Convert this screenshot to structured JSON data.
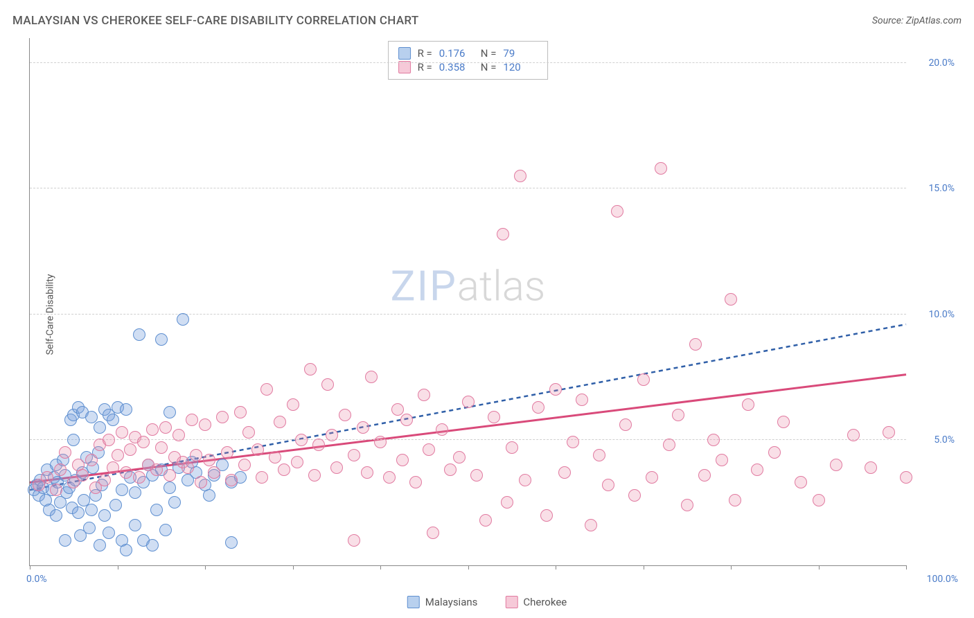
{
  "title": "MALAYSIAN VS CHEROKEE SELF-CARE DISABILITY CORRELATION CHART",
  "source": "Source: ZipAtlas.com",
  "watermark": {
    "zip": "ZIP",
    "atlas": "atlas"
  },
  "axes": {
    "y_label": "Self-Care Disability",
    "x_min_label": "0.0%",
    "x_max_label": "100.0%",
    "y_ticks": [
      {
        "value": 5.0,
        "label": "5.0%"
      },
      {
        "value": 10.0,
        "label": "10.0%"
      },
      {
        "value": 15.0,
        "label": "15.0%"
      },
      {
        "value": 20.0,
        "label": "20.0%"
      }
    ],
    "x_ticks": [
      0,
      10,
      20,
      30,
      40,
      50,
      60,
      70,
      80,
      90,
      100
    ],
    "xlim": [
      0,
      100
    ],
    "ylim": [
      0,
      21
    ]
  },
  "series": [
    {
      "id": "malaysians",
      "name": "Malaysians",
      "marker": {
        "fill": "rgba(120,160,220,0.35)",
        "stroke": "#5e8fd0",
        "radius": 9
      },
      "swatch": {
        "fill": "#b8d0ee",
        "stroke": "#5e8fd0"
      },
      "trend": {
        "stroke": "#2f5fa8",
        "width": 2.5,
        "dash": "6 5",
        "x1": 0,
        "y1": 3.0,
        "x2": 100,
        "y2": 9.6
      },
      "stats": {
        "R": "0.176",
        "N": "79"
      },
      "points": [
        [
          0.5,
          3.0
        ],
        [
          0.8,
          3.2
        ],
        [
          1.0,
          2.8
        ],
        [
          1.2,
          3.4
        ],
        [
          1.5,
          3.1
        ],
        [
          1.8,
          2.6
        ],
        [
          2.0,
          3.8
        ],
        [
          2.2,
          2.2
        ],
        [
          2.5,
          3.0
        ],
        [
          2.8,
          3.5
        ],
        [
          3.0,
          4.0
        ],
        [
          3.0,
          2.0
        ],
        [
          3.2,
          3.3
        ],
        [
          3.5,
          2.5
        ],
        [
          3.8,
          4.2
        ],
        [
          4.0,
          3.6
        ],
        [
          4.0,
          1.0
        ],
        [
          4.2,
          2.9
        ],
        [
          4.5,
          3.1
        ],
        [
          4.7,
          5.8
        ],
        [
          4.8,
          2.3
        ],
        [
          5.0,
          5.0
        ],
        [
          5.0,
          6.0
        ],
        [
          5.2,
          3.4
        ],
        [
          5.5,
          2.1
        ],
        [
          5.5,
          6.3
        ],
        [
          5.8,
          1.2
        ],
        [
          6.0,
          3.7
        ],
        [
          6.0,
          6.1
        ],
        [
          6.2,
          2.6
        ],
        [
          6.5,
          4.3
        ],
        [
          6.8,
          1.5
        ],
        [
          7.0,
          2.2
        ],
        [
          7.0,
          5.9
        ],
        [
          7.2,
          3.9
        ],
        [
          7.5,
          2.8
        ],
        [
          7.8,
          4.5
        ],
        [
          8.0,
          0.8
        ],
        [
          8.0,
          5.5
        ],
        [
          8.2,
          3.2
        ],
        [
          8.5,
          2.0
        ],
        [
          8.5,
          6.2
        ],
        [
          9.0,
          6.0
        ],
        [
          9.0,
          1.3
        ],
        [
          9.5,
          5.8
        ],
        [
          9.8,
          2.4
        ],
        [
          10.0,
          6.3
        ],
        [
          10.5,
          3.0
        ],
        [
          10.5,
          1.0
        ],
        [
          11.0,
          6.2
        ],
        [
          11.0,
          0.6
        ],
        [
          11.5,
          3.5
        ],
        [
          12.0,
          2.9
        ],
        [
          12.0,
          1.6
        ],
        [
          12.5,
          9.2
        ],
        [
          13.0,
          3.3
        ],
        [
          13.0,
          1.0
        ],
        [
          13.5,
          4.0
        ],
        [
          14.0,
          3.6
        ],
        [
          14.0,
          0.8
        ],
        [
          14.5,
          2.2
        ],
        [
          15.0,
          9.0
        ],
        [
          15.0,
          3.8
        ],
        [
          15.5,
          1.4
        ],
        [
          16.0,
          3.1
        ],
        [
          16.0,
          6.1
        ],
        [
          16.5,
          2.5
        ],
        [
          17.0,
          3.9
        ],
        [
          17.5,
          9.8
        ],
        [
          18.0,
          3.4
        ],
        [
          18.5,
          4.1
        ],
        [
          19.0,
          3.7
        ],
        [
          20.0,
          3.2
        ],
        [
          20.5,
          2.8
        ],
        [
          21.0,
          3.6
        ],
        [
          22.0,
          4.0
        ],
        [
          23.0,
          3.3
        ],
        [
          23.0,
          0.9
        ],
        [
          24.0,
          3.5
        ]
      ]
    },
    {
      "id": "cherokee",
      "name": "Cherokee",
      "marker": {
        "fill": "rgba(235,140,170,0.28)",
        "stroke": "#e17aa0",
        "radius": 9
      },
      "swatch": {
        "fill": "#f6c9d8",
        "stroke": "#e17aa0"
      },
      "trend": {
        "stroke": "#d94a7a",
        "width": 3,
        "dash": "",
        "x1": 0,
        "y1": 3.3,
        "x2": 100,
        "y2": 7.6
      },
      "stats": {
        "R": "0.358",
        "N": "120"
      },
      "points": [
        [
          1.0,
          3.2
        ],
        [
          2.0,
          3.5
        ],
        [
          3.0,
          3.0
        ],
        [
          3.5,
          3.8
        ],
        [
          4.0,
          4.5
        ],
        [
          5.0,
          3.3
        ],
        [
          5.5,
          4.0
        ],
        [
          6.0,
          3.6
        ],
        [
          7.0,
          4.2
        ],
        [
          7.5,
          3.1
        ],
        [
          8.0,
          4.8
        ],
        [
          8.5,
          3.4
        ],
        [
          9.0,
          5.0
        ],
        [
          9.5,
          3.9
        ],
        [
          10.0,
          4.4
        ],
        [
          10.5,
          5.3
        ],
        [
          11.0,
          3.7
        ],
        [
          11.5,
          4.6
        ],
        [
          12.0,
          5.1
        ],
        [
          12.5,
          3.5
        ],
        [
          13.0,
          4.9
        ],
        [
          13.5,
          4.0
        ],
        [
          14.0,
          5.4
        ],
        [
          14.5,
          3.8
        ],
        [
          15.0,
          4.7
        ],
        [
          15.5,
          5.5
        ],
        [
          16.0,
          3.6
        ],
        [
          16.5,
          4.3
        ],
        [
          17.0,
          5.2
        ],
        [
          17.5,
          4.1
        ],
        [
          18.0,
          3.9
        ],
        [
          18.5,
          5.8
        ],
        [
          19.0,
          4.4
        ],
        [
          19.5,
          3.3
        ],
        [
          20.0,
          5.6
        ],
        [
          20.5,
          4.2
        ],
        [
          21.0,
          3.7
        ],
        [
          22.0,
          5.9
        ],
        [
          22.5,
          4.5
        ],
        [
          23.0,
          3.4
        ],
        [
          24.0,
          6.1
        ],
        [
          24.5,
          4.0
        ],
        [
          25.0,
          5.3
        ],
        [
          26.0,
          4.6
        ],
        [
          26.5,
          3.5
        ],
        [
          27.0,
          7.0
        ],
        [
          28.0,
          4.3
        ],
        [
          28.5,
          5.7
        ],
        [
          29.0,
          3.8
        ],
        [
          30.0,
          6.4
        ],
        [
          30.5,
          4.1
        ],
        [
          31.0,
          5.0
        ],
        [
          32.0,
          7.8
        ],
        [
          32.5,
          3.6
        ],
        [
          33.0,
          4.8
        ],
        [
          34.0,
          7.2
        ],
        [
          34.5,
          5.2
        ],
        [
          35.0,
          3.9
        ],
        [
          36.0,
          6.0
        ],
        [
          37.0,
          4.4
        ],
        [
          37.0,
          1.0
        ],
        [
          38.0,
          5.5
        ],
        [
          38.5,
          3.7
        ],
        [
          39.0,
          7.5
        ],
        [
          40.0,
          4.9
        ],
        [
          41.0,
          3.5
        ],
        [
          42.0,
          6.2
        ],
        [
          42.5,
          4.2
        ],
        [
          43.0,
          5.8
        ],
        [
          44.0,
          3.3
        ],
        [
          45.0,
          6.8
        ],
        [
          45.5,
          4.6
        ],
        [
          46.0,
          1.3
        ],
        [
          47.0,
          5.4
        ],
        [
          48.0,
          3.8
        ],
        [
          49.0,
          4.3
        ],
        [
          50.0,
          6.5
        ],
        [
          51.0,
          3.6
        ],
        [
          52.0,
          1.8
        ],
        [
          53.0,
          5.9
        ],
        [
          54.0,
          13.2
        ],
        [
          54.5,
          2.5
        ],
        [
          55.0,
          4.7
        ],
        [
          56.0,
          15.5
        ],
        [
          56.5,
          3.4
        ],
        [
          58.0,
          6.3
        ],
        [
          59.0,
          2.0
        ],
        [
          60.0,
          7.0
        ],
        [
          61.0,
          3.7
        ],
        [
          62.0,
          4.9
        ],
        [
          63.0,
          6.6
        ],
        [
          64.0,
          1.6
        ],
        [
          65.0,
          4.4
        ],
        [
          66.0,
          3.2
        ],
        [
          67.0,
          14.1
        ],
        [
          68.0,
          5.6
        ],
        [
          69.0,
          2.8
        ],
        [
          70.0,
          7.4
        ],
        [
          71.0,
          3.5
        ],
        [
          72.0,
          15.8
        ],
        [
          73.0,
          4.8
        ],
        [
          74.0,
          6.0
        ],
        [
          75.0,
          2.4
        ],
        [
          76.0,
          8.8
        ],
        [
          77.0,
          3.6
        ],
        [
          78.0,
          5.0
        ],
        [
          79.0,
          4.2
        ],
        [
          80.0,
          10.6
        ],
        [
          80.5,
          2.6
        ],
        [
          82.0,
          6.4
        ],
        [
          83.0,
          3.8
        ],
        [
          85.0,
          4.5
        ],
        [
          86.0,
          5.7
        ],
        [
          88.0,
          3.3
        ],
        [
          90.0,
          2.6
        ],
        [
          92.0,
          4.0
        ],
        [
          94.0,
          5.2
        ],
        [
          96.0,
          3.9
        ],
        [
          98.0,
          5.3
        ],
        [
          100.0,
          3.5
        ]
      ]
    }
  ],
  "stats_legend_labels": {
    "R": "R =",
    "N": "N ="
  },
  "colors": {
    "background": "#ffffff",
    "axis": "#888888",
    "grid": "#d0d0d0",
    "text": "#5a5a5a",
    "tick_label": "#4a7bc8"
  }
}
